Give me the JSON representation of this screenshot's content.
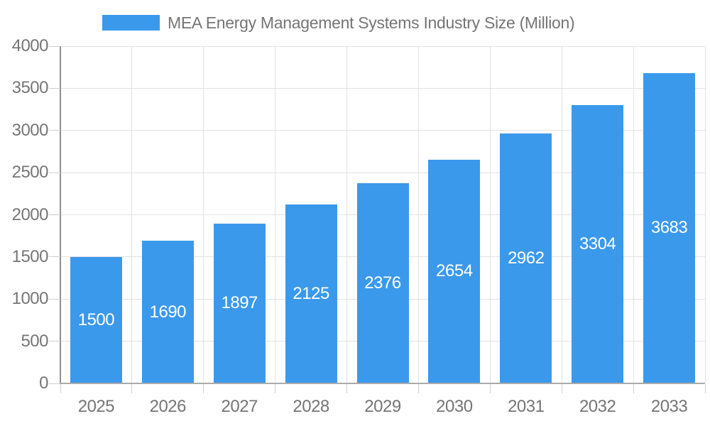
{
  "legend": {
    "label": "MEA Energy Management Systems Industry Size (Million)"
  },
  "chart_data": {
    "type": "bar",
    "title": "MEA Energy Management Systems Industry Size (Million)",
    "series_name": "MEA Energy Management Systems Industry Size (Million)",
    "categories": [
      "2025",
      "2026",
      "2027",
      "2028",
      "2029",
      "2030",
      "2031",
      "2032",
      "2033"
    ],
    "values": [
      1500,
      1690,
      1897,
      2125,
      2376,
      2654,
      2962,
      3304,
      3683
    ],
    "value_labels": [
      "1500",
      "1690",
      "1897",
      "2125",
      "2376",
      "2654",
      "2962",
      "3304",
      "3683"
    ],
    "xlabel": "",
    "ylabel": "",
    "ylim": [
      0,
      4000
    ],
    "yticks": [
      0,
      500,
      1000,
      1500,
      2000,
      2500,
      3000,
      3500,
      4000
    ],
    "grid": true,
    "legend_position": "top"
  },
  "colors": {
    "bar": "#3B99EC",
    "label_text": "#757575",
    "value_label_text": "#ffffff",
    "gridline": "#e2e2e2",
    "y_axis_line": "#8f8f8f",
    "x_axis_line": "#ababab",
    "tick": "#cfcfcf",
    "background": "#ffffff"
  }
}
